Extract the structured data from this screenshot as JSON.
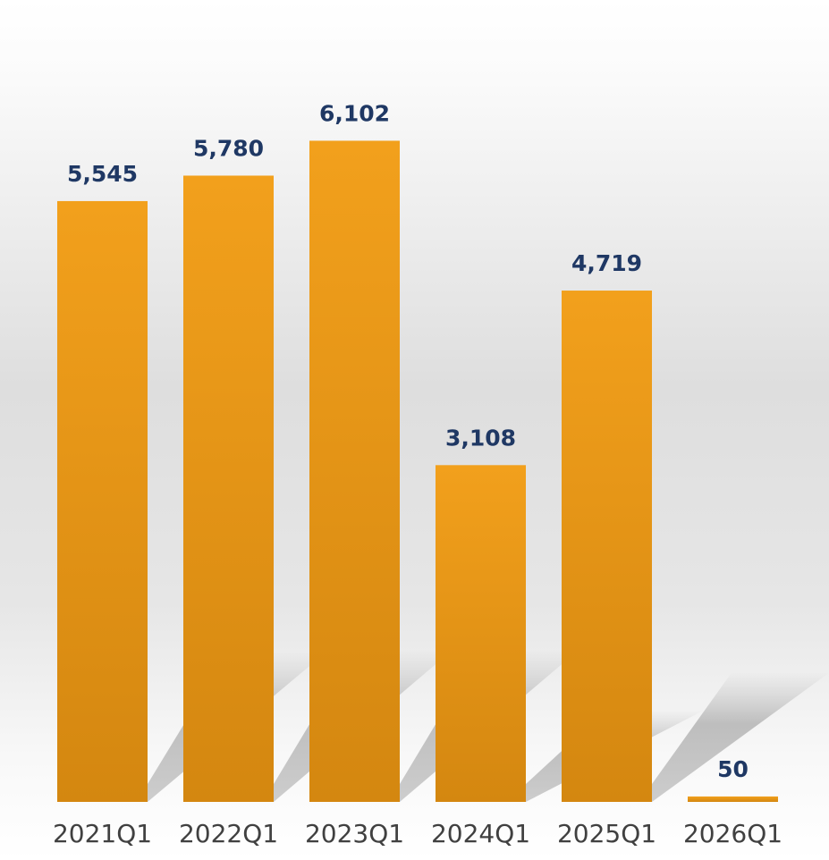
{
  "chart_data": {
    "type": "bar",
    "categories": [
      "2021Q1",
      "2022Q1",
      "2023Q1",
      "2024Q1",
      "2025Q1",
      "2026Q1"
    ],
    "values": [
      5545,
      5780,
      6102,
      3108,
      4719,
      50
    ],
    "value_labels": [
      "5,545",
      "5,780",
      "6,102",
      "3,108",
      "4,719",
      "50"
    ],
    "title": "",
    "xlabel": "",
    "ylabel": "",
    "ylim": [
      0,
      7300
    ],
    "grid": false,
    "legend": "none"
  },
  "colors": {
    "bar_top": "#f2a01c",
    "bar_bottom": "#d48710",
    "value_text": "#1f3864",
    "axis_text": "#404040",
    "background_band": "#dcdcdc"
  }
}
